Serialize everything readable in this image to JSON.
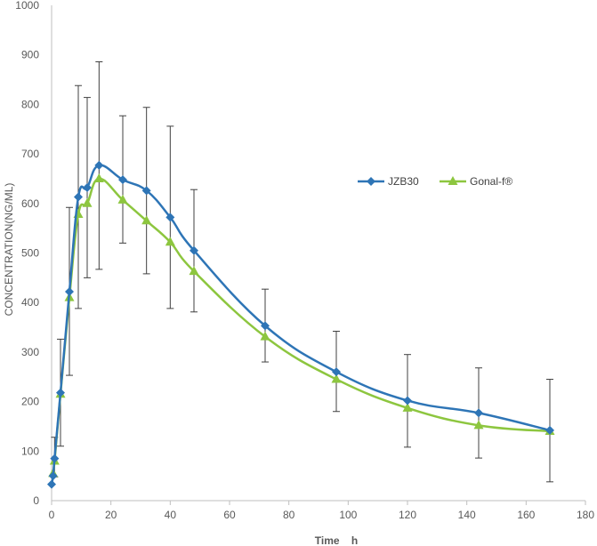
{
  "chart_data": {
    "type": "line",
    "xlabel": "Time    h",
    "ylabel": "CONCENTRATION(NG/ML)",
    "xlim": [
      0,
      180
    ],
    "ylim": [
      0,
      1000
    ],
    "x_ticks": [
      "0",
      "20",
      "40",
      "60",
      "80",
      "100",
      "120",
      "140",
      "160",
      "180"
    ],
    "y_ticks": [
      "0",
      "100",
      "200",
      "300",
      "400",
      "500",
      "600",
      "700",
      "800",
      "900",
      "1000"
    ],
    "grid": false,
    "legend_position": "right",
    "x": [
      0,
      0.5,
      1,
      3,
      6,
      9,
      12,
      16,
      24,
      32,
      40,
      48,
      72,
      96,
      120,
      144,
      168
    ],
    "series": [
      {
        "name": "JZB30",
        "color": "#2E75B6",
        "marker": "diamond",
        "values": [
          33,
          50,
          85,
          218,
          422,
          613,
          632,
          677,
          648,
          626,
          572,
          505,
          353,
          260,
          202,
          177,
          142
        ],
        "error_low": [
          null,
          null,
          48,
          110,
          253,
          388,
          450,
          467,
          520,
          458,
          388,
          381,
          280,
          180,
          108,
          86,
          38
        ],
        "error_high": [
          null,
          null,
          128,
          326,
          592,
          838,
          814,
          886,
          777,
          794,
          756,
          628,
          427,
          342,
          295,
          268,
          245
        ]
      },
      {
        "name": "Gonal-f®",
        "color": "#8DC63F",
        "marker": "triangle",
        "values": [
          null,
          55,
          80,
          215,
          410,
          578,
          600,
          650,
          607,
          565,
          522,
          463,
          331,
          245,
          187,
          152,
          140
        ]
      }
    ]
  }
}
